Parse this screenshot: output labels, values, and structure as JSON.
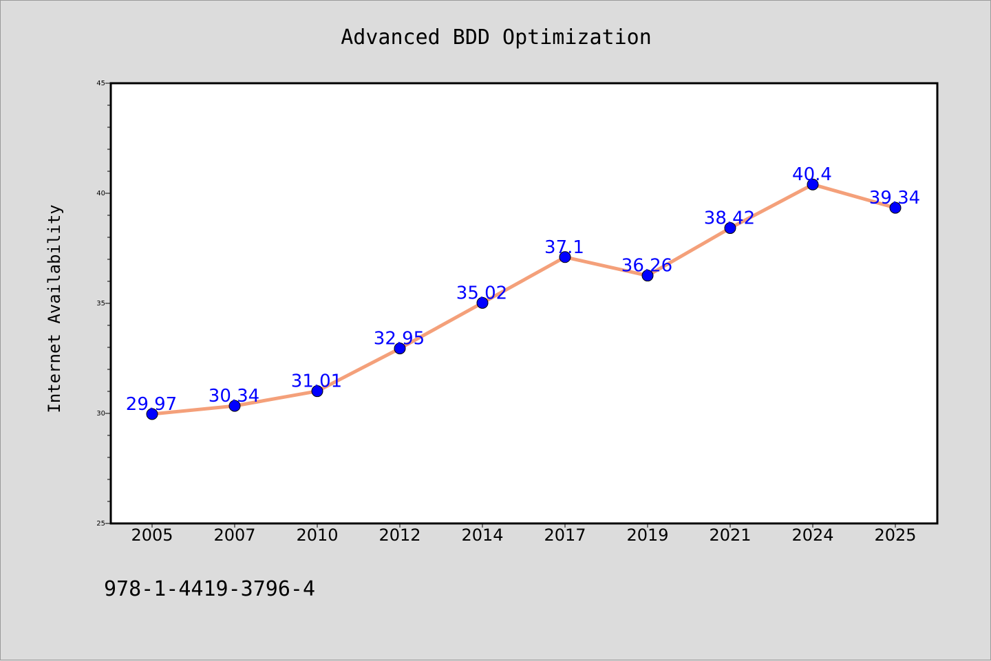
{
  "chart_data": {
    "type": "line",
    "title": "Advanced BDD Optimization",
    "xlabel": "",
    "ylabel": "Internet Availability",
    "categories": [
      "2005",
      "2007",
      "2010",
      "2012",
      "2014",
      "2017",
      "2019",
      "2021",
      "2024",
      "2025"
    ],
    "series": [
      {
        "values": [
          29.97,
          30.34,
          31.01,
          32.95,
          35.02,
          37.1,
          36.26,
          38.42,
          40.4,
          39.34
        ],
        "labels": [
          "29.97",
          "30.34",
          "31.01",
          "32.95",
          "35.02",
          "37.1",
          "36.26",
          "38.42",
          "40.4",
          "39.34"
        ],
        "line_color": "#f4a07a",
        "marker_color": "#0000ff"
      }
    ],
    "ylim": [
      25,
      45
    ],
    "yticks": [
      "25",
      "30",
      "35",
      "40",
      "45"
    ],
    "grid": false,
    "legend": "none"
  },
  "footer_text": "978-1-4419-3796-4",
  "colors": {
    "background": "#dcdcdc",
    "plot_background": "#ffffff",
    "data_label": "#0000ff"
  }
}
